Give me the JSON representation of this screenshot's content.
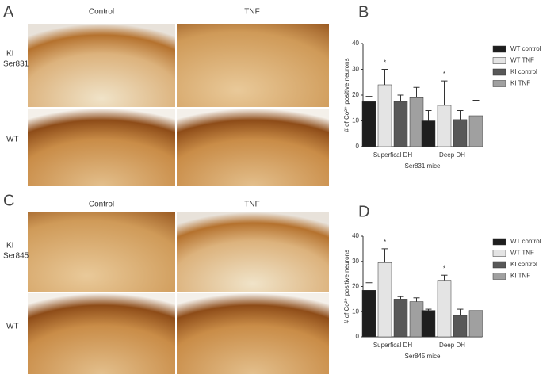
{
  "panel_labels": [
    "A",
    "B",
    "C",
    "D"
  ],
  "micrograph_panels": [
    {
      "columns": [
        "Control",
        "TNF"
      ],
      "rows": [
        [
          "KI",
          "Ser831"
        ],
        [
          "WT"
        ]
      ]
    },
    {
      "columns": [
        "Control",
        "TNF"
      ],
      "rows": [
        [
          "KI",
          "Ser845"
        ],
        [
          "WT"
        ]
      ]
    }
  ],
  "chart_data": [
    {
      "type": "bar",
      "ylabel": "# of Co²⁺ positive neurons",
      "xlabel": "Ser831 mice",
      "categories": [
        "Superfical DH",
        "Deep DH"
      ],
      "series": [
        {
          "name": "WT control",
          "color": "#1e1e1e",
          "values": [
            17.5,
            10
          ],
          "errors": [
            2,
            4
          ]
        },
        {
          "name": "WT TNF",
          "color": "#e4e4e4",
          "values": [
            24,
            16
          ],
          "errors": [
            6,
            9.5
          ]
        },
        {
          "name": "KI control",
          "color": "#585858",
          "values": [
            17.5,
            10.5
          ],
          "errors": [
            2.5,
            3.5
          ]
        },
        {
          "name": "KI TNF",
          "color": "#a0a0a0",
          "values": [
            19,
            12
          ],
          "errors": [
            4,
            6
          ]
        }
      ],
      "annotations": [
        {
          "text": "*",
          "category": "Superfical DH",
          "series": "WT TNF"
        },
        {
          "text": "*",
          "category": "Deep DH",
          "series": "WT TNF"
        }
      ],
      "ylim": [
        0,
        40
      ],
      "yticks": [
        0,
        10,
        20,
        30,
        40
      ],
      "legend": "right"
    },
    {
      "type": "bar",
      "ylabel": "# of Co²⁺ positive neurons",
      "xlabel": "Ser845 mice",
      "categories": [
        "Superfical DH",
        "Deep DH"
      ],
      "series": [
        {
          "name": "WT control",
          "color": "#1e1e1e",
          "values": [
            18.5,
            10.5
          ],
          "errors": [
            3,
            0.5
          ]
        },
        {
          "name": "WT TNF",
          "color": "#e4e4e4",
          "values": [
            29.5,
            22.5
          ],
          "errors": [
            5.5,
            2
          ]
        },
        {
          "name": "KI control",
          "color": "#585858",
          "values": [
            15,
            8.5
          ],
          "errors": [
            1,
            2.5
          ]
        },
        {
          "name": "KI TNF",
          "color": "#a0a0a0",
          "values": [
            14,
            10.5
          ],
          "errors": [
            1.5,
            1
          ]
        }
      ],
      "annotations": [
        {
          "text": "*",
          "category": "Superfical DH",
          "series": "WT TNF"
        },
        {
          "text": "*",
          "category": "Deep DH",
          "series": "WT TNF"
        }
      ],
      "ylim": [
        0,
        40
      ],
      "yticks": [
        0,
        10,
        20,
        30,
        40
      ],
      "legend": "right"
    }
  ]
}
